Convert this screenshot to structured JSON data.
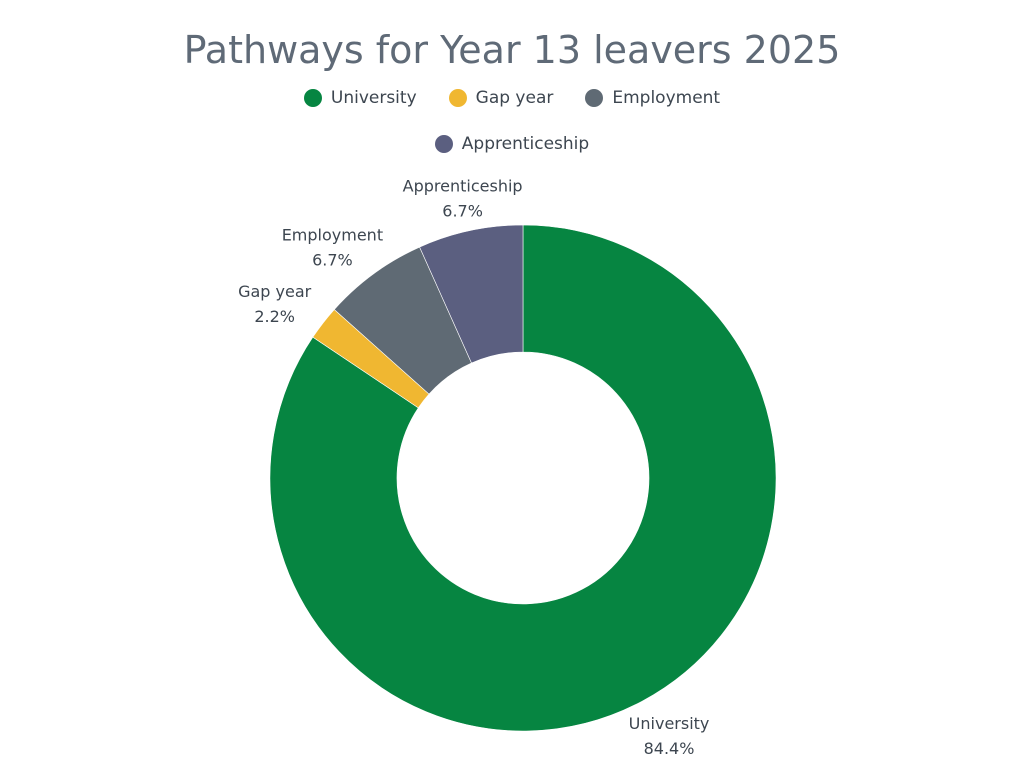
{
  "chart_data": {
    "type": "pie",
    "variant": "donut",
    "title": "Pathways for Year 13 leavers 2025",
    "categories": [
      "University",
      "Gap year",
      "Employment",
      "Apprenticeship"
    ],
    "values": [
      84.4,
      2.2,
      6.7,
      6.7
    ],
    "value_labels": [
      "84.4%",
      "2.2%",
      "6.7%",
      "6.7%"
    ],
    "colors": [
      "#068541",
      "#f0b731",
      "#5f6a74",
      "#5b5f80"
    ],
    "legend": {
      "position": "top",
      "entries": [
        "University",
        "Gap year",
        "Employment",
        "Apprenticeship"
      ]
    },
    "grid": false
  }
}
